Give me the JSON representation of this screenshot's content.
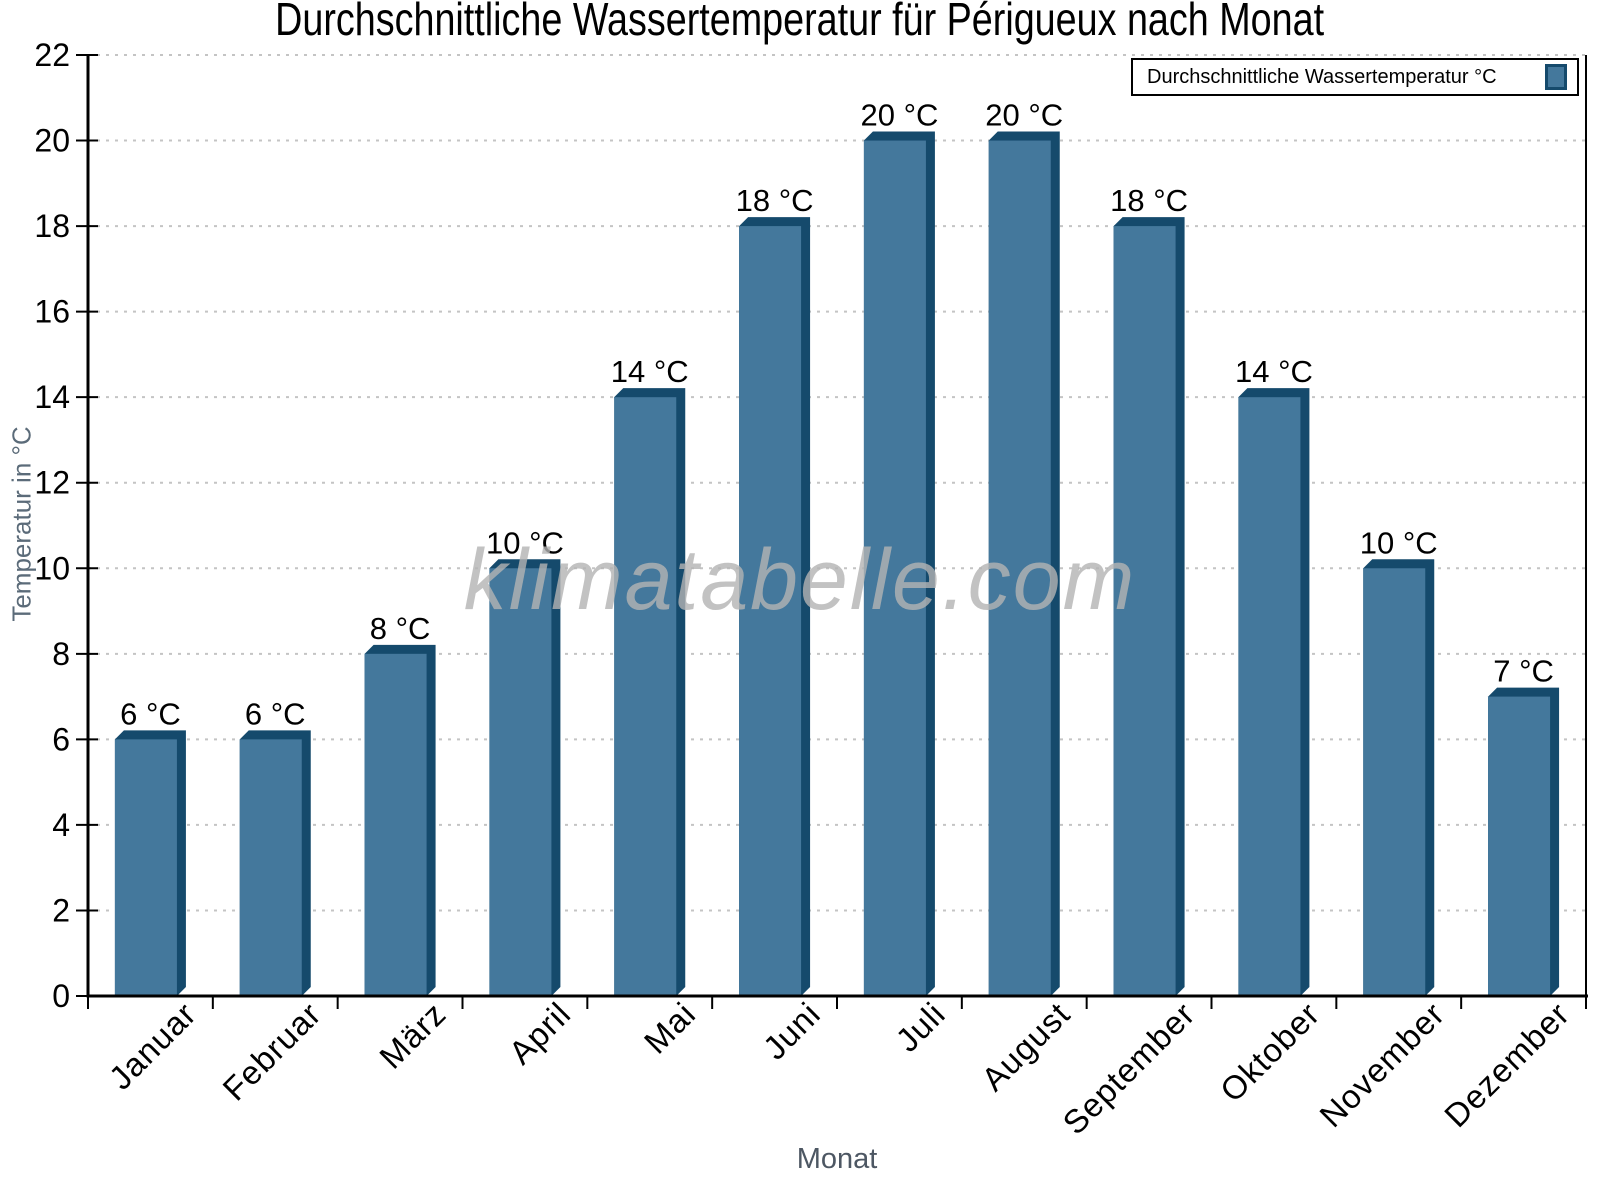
{
  "title": "Durchschnittliche Wassertemperatur für Périgueux nach Monat",
  "watermark": "klimatabelle.com",
  "legend": {
    "label": "Durchschnittliche Wassertemperatur °C"
  },
  "axes": {
    "x_label": "Monat",
    "y_label": "Temperatur in °C"
  },
  "colors": {
    "bar_face": "#44789C",
    "bar_edge": "#154A6C",
    "axis": "#000000",
    "grid": "#c4c4c4",
    "y_axis_title": "#5b6b79",
    "x_axis_title": "#4d5763",
    "watermark": "#b4b4b4",
    "tick_label": "#000000"
  },
  "chart_data": {
    "type": "bar",
    "title": "Durchschnittliche Wassertemperatur für Périgueux nach Monat",
    "categories": [
      "Januar",
      "Februar",
      "März",
      "April",
      "Mai",
      "Juni",
      "Juli",
      "August",
      "September",
      "Oktober",
      "November",
      "Dezember"
    ],
    "values": [
      6,
      6,
      8,
      10,
      14,
      18,
      20,
      20,
      18,
      14,
      10,
      7
    ],
    "unit": "°C",
    "value_labels": [
      "6 °C",
      "6 °C",
      "8 °C",
      "10 °C",
      "14 °C",
      "18 °C",
      "20 °C",
      "20 °C",
      "18 °C",
      "14 °C",
      "10 °C",
      "7 °C"
    ],
    "xlabel": "Monat",
    "ylabel": "Temperatur in °C",
    "ylim": [
      0,
      22
    ],
    "ytick_step": 2,
    "grid": "horizontal-dotted",
    "legend": "Durchschnittliche Wassertemperatur °C",
    "legend_position": "top-right",
    "bar_style": "3d-bevel-top-right"
  }
}
